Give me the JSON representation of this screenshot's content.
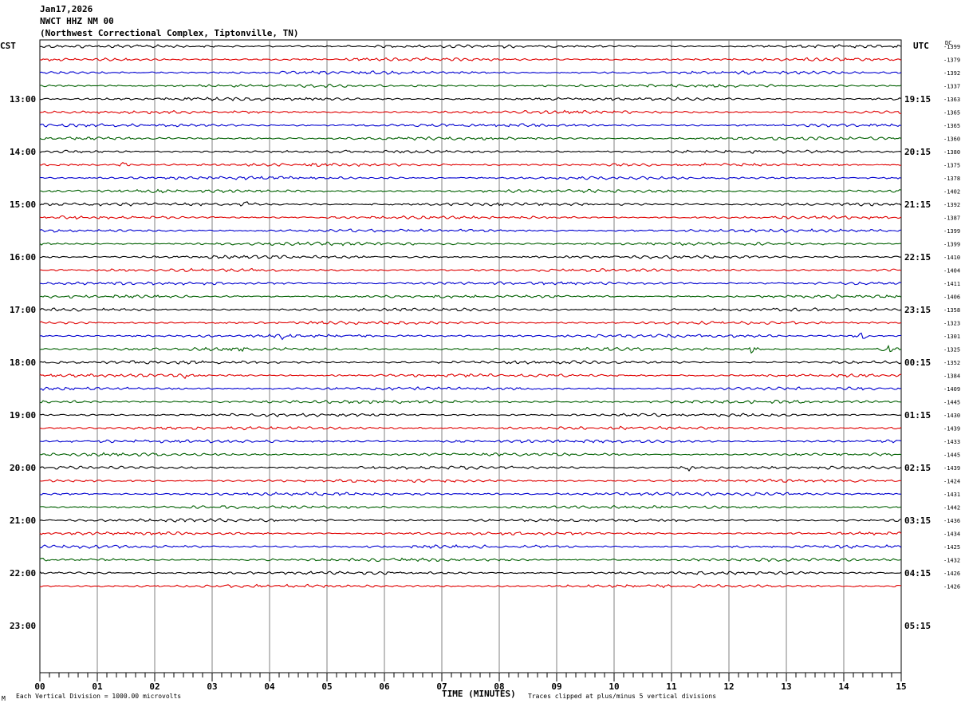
{
  "header": {
    "date": "Jan17,2026",
    "station": "NWCT HHZ NM 00",
    "location": "(Northwest Correctional Complex, Tiptonville, TN)"
  },
  "axis_titles": {
    "left_tz": "CST",
    "right_tz": "UTC",
    "dc_header": "DC"
  },
  "footer": {
    "xlabel": "TIME (MINUTES)",
    "scale_note": "Each Vertical Division = 1000.00 microvolts",
    "clip_note": "Traces clipped at plus/minus 5 vertical divisions",
    "corner_mark": "M"
  },
  "colors": {
    "cycle": [
      "#000000",
      "#e00000",
      "#0000d0",
      "#006000"
    ],
    "grid": "#808080"
  },
  "chart_data": {
    "type": "line",
    "title": "NWCT HHZ NM 00",
    "xlabel": "TIME (MINUTES)",
    "xlim": [
      0,
      15
    ],
    "x_ticks": [
      "00",
      "01",
      "02",
      "03",
      "04",
      "05",
      "06",
      "07",
      "08",
      "09",
      "10",
      "11",
      "12",
      "13",
      "14",
      "15"
    ],
    "rows_per_hour": 4,
    "left_hour_labels": [
      "13:00",
      "14:00",
      "15:00",
      "16:00",
      "17:00",
      "18:00",
      "19:00",
      "20:00",
      "21:00",
      "22:00",
      "23:00"
    ],
    "right_hour_labels": [
      "19:15",
      "20:15",
      "21:15",
      "22:15",
      "23:15",
      "00:15",
      "01:15",
      "02:15",
      "03:15",
      "04:15",
      "05:15"
    ],
    "trace_dc_offsets": [
      -1399,
      -1379,
      -1392,
      -1337,
      -1363,
      -1365,
      -1365,
      -1360,
      -1380,
      -1375,
      -1378,
      -1402,
      -1392,
      -1387,
      -1399,
      -1399,
      -1410,
      -1404,
      -1411,
      -1406,
      -1358,
      -1323,
      -1301,
      -1325,
      -1352,
      -1384,
      -1409,
      -1445,
      -1430,
      -1439,
      -1433,
      -1445,
      -1439,
      -1424,
      -1431,
      -1442,
      -1436,
      -1434,
      -1425,
      -1432,
      -1426,
      -1426
    ],
    "events": [
      {
        "trace": 9,
        "minute": 1.5
      },
      {
        "trace": 12,
        "minute": 3.6
      },
      {
        "trace": 22,
        "minute": 4.2
      },
      {
        "trace": 22,
        "minute": 14.3
      },
      {
        "trace": 23,
        "minute": 3.4
      },
      {
        "trace": 23,
        "minute": 12.4
      },
      {
        "trace": 23,
        "minute": 14.8
      },
      {
        "trace": 25,
        "minute": 2.6
      },
      {
        "trace": 32,
        "minute": 11.3
      }
    ]
  }
}
